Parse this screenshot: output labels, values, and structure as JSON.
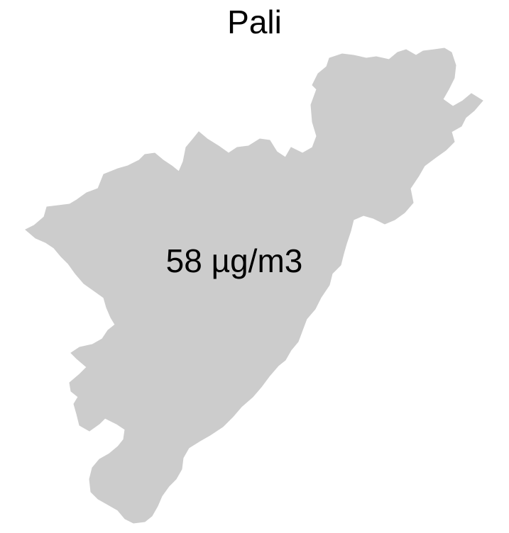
{
  "map": {
    "title": "Pali",
    "region_fill": "#cccccc",
    "background": "#ffffff",
    "label_color": "#000000",
    "region_label": "58 µg/m3"
  }
}
